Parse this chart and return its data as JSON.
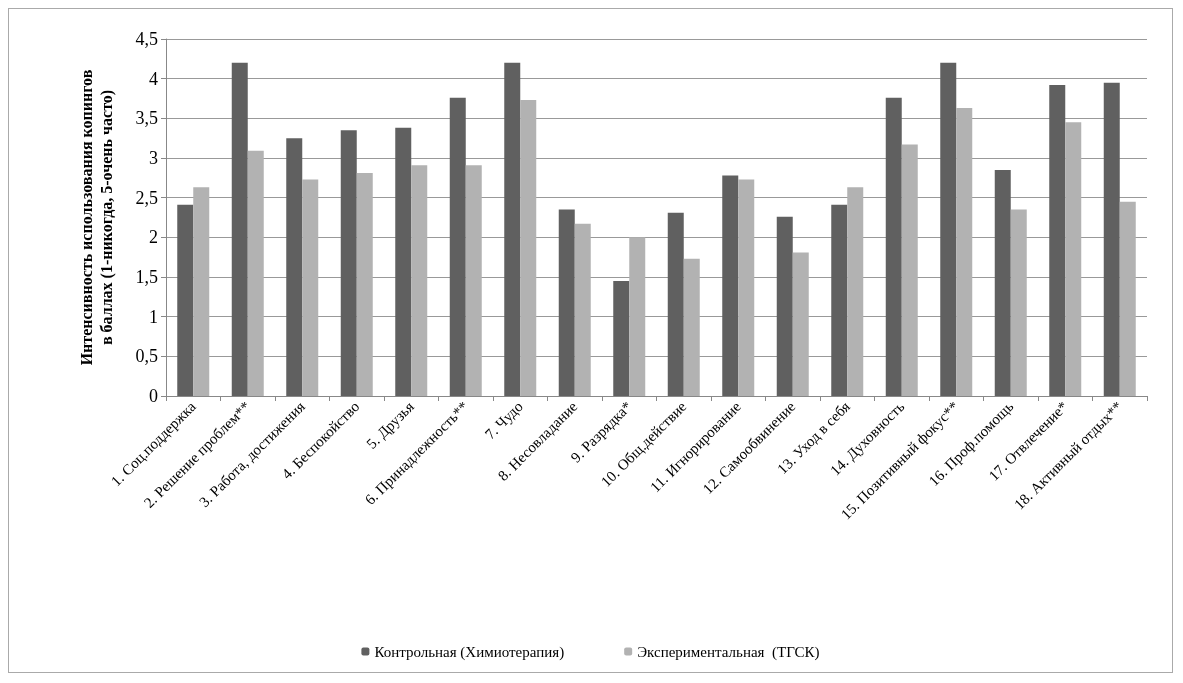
{
  "chart_data": {
    "type": "bar",
    "ylabel": "Интенсивность использования копингов\nв баллах (1-никогда, 5-очень часто)",
    "categories": [
      "1. Соц.поддержка",
      "2. Решение проблем**",
      "3. Работа, достижения",
      "4. Беспокойство",
      "5. Друзья",
      "6. Принадлежность**",
      "7. Чудо",
      "8. Несовладание",
      "9. Разрядка*",
      "10. Общ.действие",
      "11. Игнорирование",
      "12. Самообвинение",
      "13. Уход в себя",
      "14. Духовность",
      "15. Позитивный фокус**",
      "16. Проф.помощь",
      "17. Отвлечение*",
      "18. Активный отдых**"
    ],
    "series": [
      {
        "name": "Контрольная (Химиотерапия)",
        "color": "#606060",
        "values": [
          2.41,
          4.2,
          3.25,
          3.35,
          3.38,
          3.76,
          4.2,
          2.35,
          1.45,
          2.31,
          2.78,
          2.26,
          2.41,
          3.76,
          4.2,
          2.85,
          3.92,
          3.95
        ]
      },
      {
        "name": "Экспериментальная  (ТГСК)",
        "color": "#b2b2b2",
        "values": [
          2.63,
          3.09,
          2.73,
          2.81,
          2.91,
          2.91,
          3.73,
          2.17,
          2.0,
          1.73,
          2.73,
          1.81,
          2.63,
          3.17,
          3.63,
          2.35,
          3.45,
          2.45
        ]
      }
    ],
    "ylim": [
      0,
      4.5
    ],
    "yticks": [
      0,
      {
        "value": 0.5,
        "label": "0,5"
      },
      1,
      {
        "value": 1.5,
        "label": "1,5"
      },
      2,
      {
        "value": 2.5,
        "label": "2,5"
      },
      3,
      {
        "value": 3.5,
        "label": "3,5"
      },
      4,
      {
        "value": 4.5,
        "label": "4,5"
      }
    ],
    "grid": "y",
    "legend": "bottom"
  }
}
